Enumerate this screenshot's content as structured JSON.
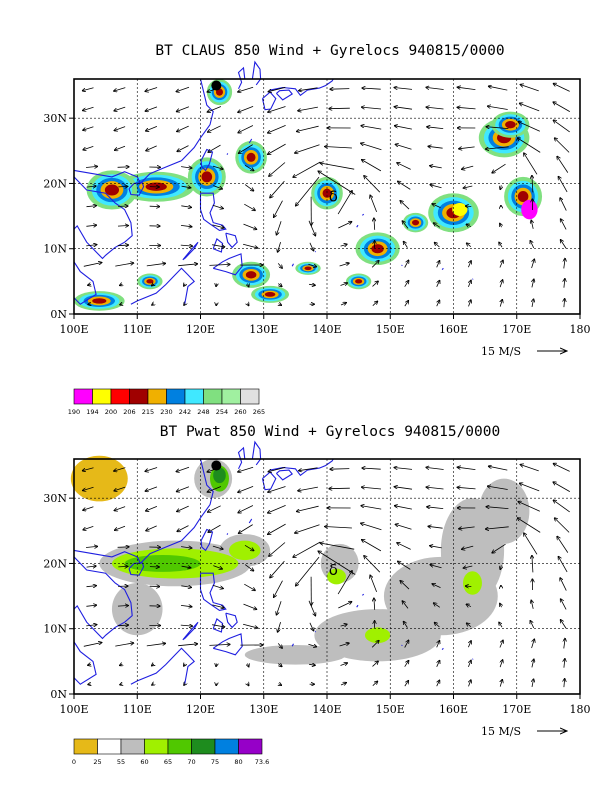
{
  "colors": {
    "coastline": "#1f1fe0",
    "claus_scale": [
      "#ff00ff",
      "#ffff00",
      "#ff0000",
      "#a00000",
      "#f0b000",
      "#0080e0",
      "#40e8ff",
      "#80e080",
      "#a0f0a0",
      "#e0e0e0"
    ],
    "pwat_scale": [
      "#e6b918",
      "#ffffff",
      "#bebebe",
      "#a0f000",
      "#50c800",
      "#1e8c1e",
      "#0080e0",
      "#9600c8"
    ]
  },
  "panels": [
    {
      "id": "claus",
      "title": "BT CLAUS 850 Wind + Gyrelocs 940815/0000",
      "scale_label": "15 M/S",
      "colorbar_labels": [
        "190",
        "194",
        "200",
        "206",
        "215",
        "230",
        "242",
        "248",
        "254",
        "260",
        "265"
      ]
    },
    {
      "id": "pwat",
      "title": "BT Pwat 850 Wind + Gyrelocs 940815/0000",
      "scale_label": "15 M/S",
      "colorbar_labels": [
        "0",
        "25",
        "55",
        "60",
        "65",
        "70",
        "75",
        "80",
        "73.6"
      ]
    }
  ],
  "chart_data": [
    {
      "type": "heatmap",
      "title": "BT CLAUS 850 Wind + Gyrelocs 940815/0000",
      "x_range": [
        100,
        180
      ],
      "y_range": [
        0,
        36
      ],
      "x_ticks": [
        "100E",
        "110E",
        "120E",
        "130E",
        "140E",
        "150E",
        "160E",
        "170E",
        "180"
      ],
      "y_ticks": [
        "0N",
        "10N",
        "20N",
        "30N"
      ],
      "grid": true,
      "colorbar_levels": [
        190,
        194,
        200,
        206,
        215,
        230,
        242,
        248,
        254,
        260,
        265
      ],
      "overlay": "850 hPa wind vectors",
      "reference_vector": "15 M/S",
      "gyre_marker": {
        "lon": 141,
        "lat": 18
      }
    },
    {
      "type": "heatmap",
      "title": "BT Pwat 850 Wind + Gyrelocs 940815/0000",
      "x_range": [
        100,
        180
      ],
      "y_range": [
        0,
        36
      ],
      "x_ticks": [
        "100E",
        "110E",
        "120E",
        "130E",
        "140E",
        "150E",
        "160E",
        "170E",
        "180"
      ],
      "y_ticks": [
        "0N",
        "10N",
        "20N",
        "30N"
      ],
      "grid": true,
      "colorbar_levels": [
        "0",
        "25",
        "55",
        "60",
        "65",
        "70",
        "75",
        "80",
        "73.6"
      ],
      "overlay": "850 hPa wind vectors",
      "reference_vector": "15 M/S",
      "gyre_marker": {
        "lon": 141,
        "lat": 19
      }
    }
  ]
}
